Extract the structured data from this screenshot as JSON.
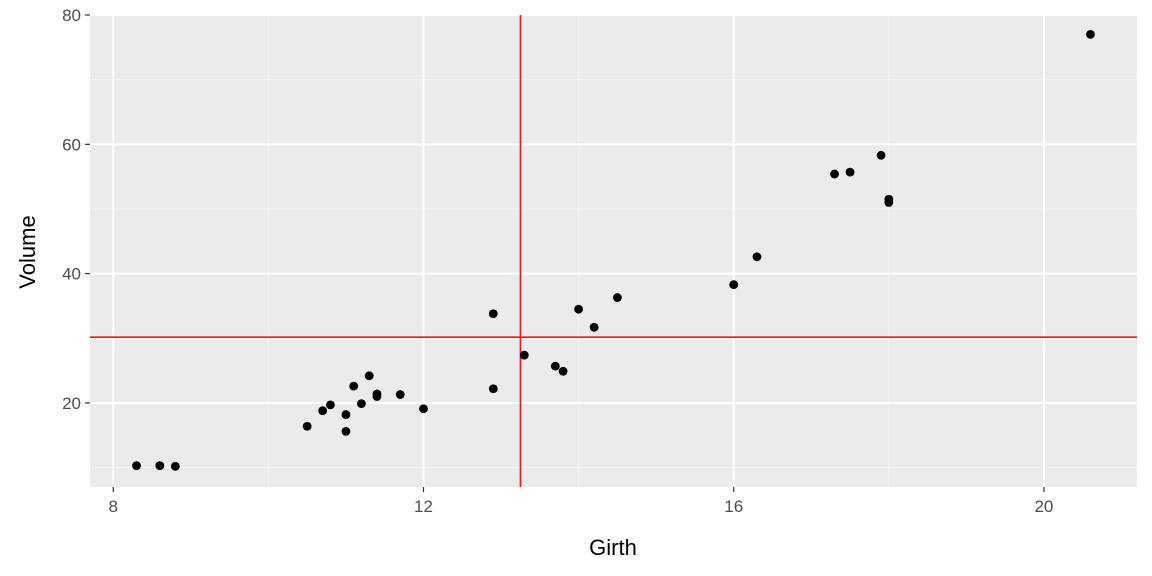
{
  "chart_data": {
    "type": "scatter",
    "title": "",
    "xlabel": "Girth",
    "ylabel": "Volume",
    "xlim": [
      7.7,
      21.2
    ],
    "ylim": [
      7.0,
      80.0
    ],
    "x_ticks": [
      8,
      12,
      16,
      20
    ],
    "x_minor_ticks": [
      10,
      14,
      18
    ],
    "y_ticks": [
      20,
      40,
      60,
      80
    ],
    "y_minor_ticks": [
      10,
      30,
      50,
      70
    ],
    "x_tick_labels": [
      "8",
      "12",
      "16",
      "20"
    ],
    "y_tick_labels": [
      "20",
      "40",
      "60",
      "80"
    ],
    "grid": true,
    "legend": "none",
    "colors": {
      "panel": "#ebebeb",
      "grid_major": "#ffffff",
      "grid_minor": "#f5f5f5",
      "point": "#000000",
      "reference_line": "#e41a1c"
    },
    "reference_lines": {
      "vertical_x": 13.25,
      "horizontal_y": 30.17
    },
    "points": [
      {
        "x": 8.3,
        "y": 10.3
      },
      {
        "x": 8.6,
        "y": 10.3
      },
      {
        "x": 8.8,
        "y": 10.2
      },
      {
        "x": 10.5,
        "y": 16.4
      },
      {
        "x": 10.7,
        "y": 18.8
      },
      {
        "x": 10.8,
        "y": 19.7
      },
      {
        "x": 11.0,
        "y": 15.6
      },
      {
        "x": 11.0,
        "y": 18.2
      },
      {
        "x": 11.1,
        "y": 22.6
      },
      {
        "x": 11.2,
        "y": 19.9
      },
      {
        "x": 11.3,
        "y": 24.2
      },
      {
        "x": 11.4,
        "y": 21.0
      },
      {
        "x": 11.4,
        "y": 21.4
      },
      {
        "x": 11.7,
        "y": 21.3
      },
      {
        "x": 12.0,
        "y": 19.1
      },
      {
        "x": 12.9,
        "y": 22.2
      },
      {
        "x": 12.9,
        "y": 33.8
      },
      {
        "x": 13.3,
        "y": 27.4
      },
      {
        "x": 13.7,
        "y": 25.7
      },
      {
        "x": 13.8,
        "y": 24.9
      },
      {
        "x": 14.0,
        "y": 34.5
      },
      {
        "x": 14.2,
        "y": 31.7
      },
      {
        "x": 14.5,
        "y": 36.3
      },
      {
        "x": 16.0,
        "y": 38.3
      },
      {
        "x": 16.3,
        "y": 42.6
      },
      {
        "x": 17.3,
        "y": 55.4
      },
      {
        "x": 17.5,
        "y": 55.7
      },
      {
        "x": 17.9,
        "y": 58.3
      },
      {
        "x": 18.0,
        "y": 51.5
      },
      {
        "x": 18.0,
        "y": 51.0
      },
      {
        "x": 20.6,
        "y": 77.0
      }
    ]
  }
}
